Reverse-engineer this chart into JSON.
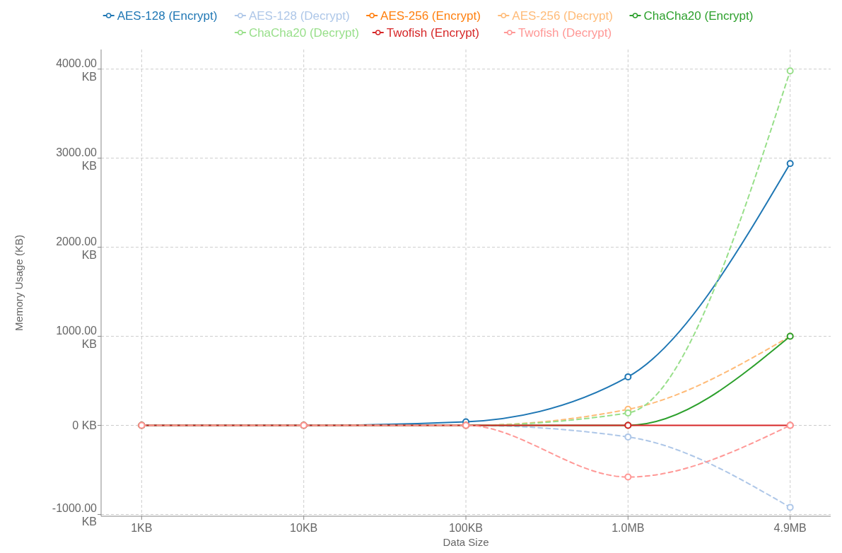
{
  "chart_data": {
    "type": "line",
    "xlabel": "Data Size",
    "ylabel": "Memory Usage (KB)",
    "categories": [
      "1KB",
      "10KB",
      "100KB",
      "1.0MB",
      "4.9MB"
    ],
    "ylim": [
      -1020,
      4220
    ],
    "yticks": [
      {
        "value": -1000,
        "label": "-1000.00 KB"
      },
      {
        "value": 0,
        "label": "0 KB"
      },
      {
        "value": 1000,
        "label": "1000.00 KB"
      },
      {
        "value": 2000,
        "label": "2000.00 KB"
      },
      {
        "value": 3000,
        "label": "3000.00 KB"
      },
      {
        "value": 4000,
        "label": "4000.00 KB"
      }
    ],
    "grid": true,
    "legend": "top",
    "marker": "circle",
    "series": [
      {
        "name": "AES-128 (Encrypt)",
        "color": "#1f77b4",
        "line_style": "solid",
        "values": [
          0,
          0,
          40,
          545,
          2940
        ]
      },
      {
        "name": "AES-128 (Decrypt)",
        "color": "#aec7e8",
        "line_style": "dashed",
        "values": [
          0,
          0,
          0,
          -130,
          -920
        ]
      },
      {
        "name": "AES-256 (Encrypt)",
        "color": "#ff7f0e",
        "line_style": "solid",
        "values": [
          null,
          null,
          null,
          null,
          null
        ]
      },
      {
        "name": "AES-256 (Decrypt)",
        "color": "#ffbb78",
        "line_style": "dashed",
        "values": [
          0,
          0,
          0,
          180,
          1000
        ]
      },
      {
        "name": "ChaCha20 (Encrypt)",
        "color": "#2ca02c",
        "line_style": "solid",
        "values": [
          0,
          0,
          0,
          0,
          1000
        ]
      },
      {
        "name": "ChaCha20 (Decrypt)",
        "color": "#98df8a",
        "line_style": "dashed",
        "values": [
          0,
          0,
          0,
          140,
          3980
        ]
      },
      {
        "name": "Twofish (Encrypt)",
        "color": "#d62728",
        "line_style": "solid",
        "values": [
          0,
          0,
          0,
          0,
          0
        ]
      },
      {
        "name": "Twofish (Decrypt)",
        "color": "#ff9896",
        "line_style": "dashed",
        "values": [
          0,
          0,
          0,
          -580,
          0
        ]
      }
    ]
  }
}
